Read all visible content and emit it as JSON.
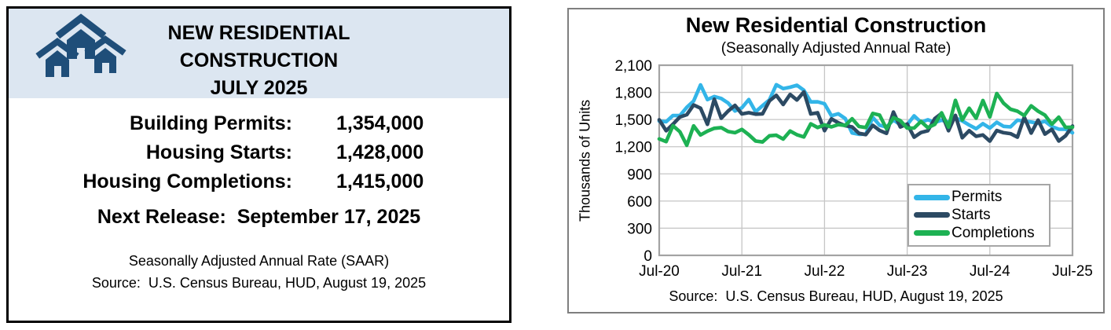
{
  "left_panel": {
    "title_lines": [
      "NEW RESIDENTIAL",
      "CONSTRUCTION",
      "JULY 2025"
    ],
    "stats": [
      {
        "label": "Building Permits:",
        "value": "1,354,000"
      },
      {
        "label": "Housing Starts:",
        "value": "1,428,000"
      },
      {
        "label": "Housing Completions:",
        "value": "1,415,000"
      }
    ],
    "next_release": "Next Release:  September 17, 2025",
    "footnote": "Seasonally Adjusted Annual Rate (SAAR)",
    "source": "Source:  U.S. Census Bureau, HUD, August 19, 2025",
    "header_bg": "#DCE6F1",
    "icon_color": "#1F4E79",
    "icon": "houses-icon"
  },
  "chart_panel": {
    "source": "Source:  U.S. Census Bureau, HUD, August 19, 2025"
  },
  "chart_data": {
    "type": "line",
    "title": "New Residential Construction",
    "subtitle": "(Seasonally Adjusted Annual Rate)",
    "ylabel": "Thousands of Units",
    "ylim": [
      0,
      2100
    ],
    "grid": true,
    "legend_position": "inside-bottom-right",
    "y_tick_values": [
      0,
      300,
      600,
      900,
      1200,
      1500,
      1800,
      2100
    ],
    "y_tick_labels": [
      "0",
      "300",
      "600",
      "900",
      "1,200",
      "1,500",
      "1,800",
      "2,100"
    ],
    "x_tick_labels": [
      "Jul-20",
      "Jul-21",
      "Jul-22",
      "Jul-23",
      "Jul-24",
      "Jul-25"
    ],
    "x_tick_indices": [
      0,
      12,
      24,
      36,
      48,
      60
    ],
    "months": [
      "Jul-20",
      "Aug-20",
      "Sep-20",
      "Oct-20",
      "Nov-20",
      "Dec-20",
      "Jan-21",
      "Feb-21",
      "Mar-21",
      "Apr-21",
      "May-21",
      "Jun-21",
      "Jul-21",
      "Aug-21",
      "Sep-21",
      "Oct-21",
      "Nov-21",
      "Dec-21",
      "Jan-22",
      "Feb-22",
      "Mar-22",
      "Apr-22",
      "May-22",
      "Jun-22",
      "Jul-22",
      "Aug-22",
      "Sep-22",
      "Oct-22",
      "Nov-22",
      "Dec-22",
      "Jan-23",
      "Feb-23",
      "Mar-23",
      "Apr-23",
      "May-23",
      "Jun-23",
      "Jul-23",
      "Aug-23",
      "Sep-23",
      "Oct-23",
      "Nov-23",
      "Dec-23",
      "Jan-24",
      "Feb-24",
      "Mar-24",
      "Apr-24",
      "May-24",
      "Jun-24",
      "Jul-24",
      "Aug-24",
      "Sep-24",
      "Oct-24",
      "Nov-24",
      "Dec-24",
      "Jan-25",
      "Feb-25",
      "Mar-25",
      "Apr-25",
      "May-25",
      "Jun-25",
      "Jul-25"
    ],
    "series": [
      {
        "name": "Permits",
        "color": "#33B5E8",
        "values": [
          1483,
          1476,
          1545,
          1544,
          1635,
          1704,
          1883,
          1720,
          1755,
          1733,
          1683,
          1594,
          1630,
          1721,
          1586,
          1653,
          1717,
          1885,
          1841,
          1857,
          1879,
          1823,
          1695,
          1696,
          1674,
          1542,
          1564,
          1512,
          1351,
          1337,
          1339,
          1524,
          1437,
          1417,
          1496,
          1441,
          1443,
          1541,
          1471,
          1498,
          1467,
          1493,
          1470,
          1518,
          1485,
          1440,
          1399,
          1454,
          1406,
          1470,
          1425,
          1419,
          1493,
          1482,
          1473,
          1459,
          1481,
          1422,
          1394,
          1393,
          1354
        ]
      },
      {
        "name": "Starts",
        "color": "#2C4A63",
        "values": [
          1497,
          1376,
          1448,
          1528,
          1553,
          1661,
          1625,
          1447,
          1725,
          1514,
          1594,
          1657,
          1562,
          1576,
          1559,
          1563,
          1706,
          1768,
          1666,
          1777,
          1716,
          1805,
          1562,
          1575,
          1377,
          1508,
          1465,
          1432,
          1419,
          1348,
          1334,
          1436,
          1380,
          1348,
          1583,
          1418,
          1451,
          1305,
          1356,
          1376,
          1510,
          1568,
          1376,
          1546,
          1299,
          1377,
          1315,
          1329,
          1262,
          1379,
          1355,
          1344,
          1305,
          1526,
          1350,
          1494,
          1339,
          1392,
          1263,
          1321,
          1428
        ]
      },
      {
        "name": "Completions",
        "color": "#1DB153",
        "values": [
          1286,
          1256,
          1432,
          1365,
          1216,
          1430,
          1329,
          1372,
          1403,
          1411,
          1368,
          1355,
          1391,
          1332,
          1263,
          1252,
          1321,
          1327,
          1284,
          1373,
          1332,
          1308,
          1453,
          1412,
          1441,
          1419,
          1444,
          1434,
          1509,
          1423,
          1412,
          1568,
          1549,
          1397,
          1521,
          1488,
          1406,
          1406,
          1479,
          1410,
          1447,
          1574,
          1416,
          1712,
          1495,
          1625,
          1514,
          1710,
          1529,
          1788,
          1680,
          1614,
          1592,
          1544,
          1651,
          1592,
          1549,
          1448,
          1526,
          1414,
          1415
        ]
      }
    ]
  }
}
